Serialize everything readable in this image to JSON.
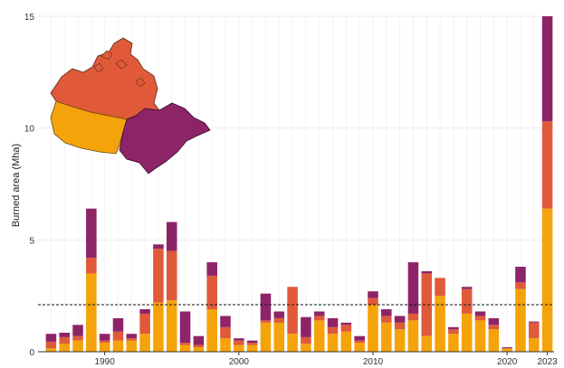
{
  "chart_data": {
    "type": "bar",
    "stacked": true,
    "ylabel": "Burned area (Mha)",
    "xlabel": "",
    "ylim": [
      0,
      15
    ],
    "yticks": [
      0,
      5,
      10,
      15
    ],
    "xticks": [
      "1990",
      "2000",
      "2010",
      "2020",
      "2023"
    ],
    "grid": true,
    "reference_line": {
      "value": 2.1,
      "style": "dashed"
    },
    "categories": [
      "1986",
      "1987",
      "1988",
      "1989",
      "1990",
      "1991",
      "1992",
      "1993",
      "1994",
      "1995",
      "1996",
      "1997",
      "1998",
      "1999",
      "2000",
      "2001",
      "2002",
      "2003",
      "2004",
      "2005",
      "2006",
      "2007",
      "2008",
      "2009",
      "2010",
      "2011",
      "2012",
      "2013",
      "2014",
      "2015",
      "2016",
      "2017",
      "2018",
      "2019",
      "2020",
      "2021",
      "2022",
      "2023"
    ],
    "series": [
      {
        "color": "#f5a30a",
        "values": [
          0.15,
          0.35,
          0.5,
          3.5,
          0.4,
          0.5,
          0.5,
          0.8,
          2.2,
          2.3,
          0.3,
          0.2,
          1.9,
          0.6,
          0.3,
          0.3,
          1.3,
          1.3,
          0.8,
          0.35,
          1.4,
          0.8,
          0.9,
          0.4,
          2.1,
          1.3,
          1.0,
          1.4,
          0.7,
          2.5,
          0.8,
          1.7,
          1.4,
          1.0,
          0.15,
          2.8,
          0.6,
          6.4
        ]
      },
      {
        "color": "#e05a3a",
        "values": [
          0.3,
          0.3,
          0.2,
          0.7,
          0.1,
          0.4,
          0.1,
          0.9,
          2.4,
          2.2,
          0.1,
          0.1,
          1.5,
          0.5,
          0.2,
          0.1,
          0.1,
          0.2,
          2.1,
          0.3,
          0.2,
          0.3,
          0.3,
          0.1,
          0.3,
          0.3,
          0.3,
          0.3,
          2.8,
          0.8,
          0.2,
          1.1,
          0.2,
          0.2,
          0.0,
          0.3,
          0.7,
          3.9
        ]
      },
      {
        "color": "#8e2468",
        "values": [
          0.35,
          0.2,
          0.5,
          2.2,
          0.3,
          0.6,
          0.2,
          0.2,
          0.2,
          1.3,
          1.4,
          0.4,
          0.6,
          0.5,
          0.1,
          0.1,
          1.2,
          0.3,
          0.0,
          0.9,
          0.2,
          0.4,
          0.1,
          0.2,
          0.3,
          0.3,
          0.3,
          2.3,
          0.1,
          0.0,
          0.1,
          0.1,
          0.2,
          0.3,
          0.05,
          0.7,
          0.05,
          4.7
        ]
      }
    ]
  },
  "inset_map": {
    "description_icon": "canada-map-icon",
    "region_colors": [
      "#e05a3a",
      "#f5a30a",
      "#8e2468"
    ]
  }
}
